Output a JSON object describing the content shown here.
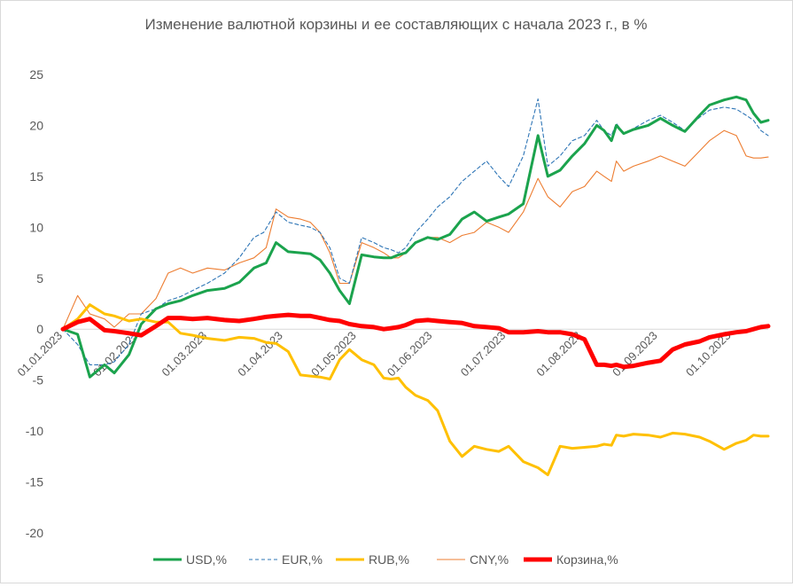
{
  "chart_data": {
    "type": "line",
    "title": "Изменение валютной корзины и ее составляющих с начала 2023 г., в %",
    "xlabel": "",
    "ylabel": "",
    "ylim": [
      -20,
      25
    ],
    "yticks": [
      "25",
      "20",
      "15",
      "10",
      "5",
      "0",
      "-5",
      "-10",
      "-15",
      "-20"
    ],
    "xticks": [
      "01.01.2023",
      "01.02.2023",
      "01.03.2023",
      "01.04.2023",
      "01.05.2023",
      "01.06.2023",
      "01.07.2023",
      "01.08.2023",
      "01.09.2023",
      "01.10.2023"
    ],
    "legend_position": "bottom",
    "grid": false,
    "series": [
      {
        "name": "USD,%",
        "color": "#1ba34d",
        "style": "solid-thick",
        "x": [
          "2023-01-01",
          "2023-01-07",
          "2023-01-12",
          "2023-01-18",
          "2023-01-22",
          "2023-01-28",
          "2023-02-02",
          "2023-02-08",
          "2023-02-13",
          "2023-02-18",
          "2023-02-23",
          "2023-03-01",
          "2023-03-08",
          "2023-03-14",
          "2023-03-20",
          "2023-03-25",
          "2023-03-29",
          "2023-04-03",
          "2023-04-08",
          "2023-04-12",
          "2023-04-16",
          "2023-04-20",
          "2023-04-24",
          "2023-04-28",
          "2023-05-03",
          "2023-05-08",
          "2023-05-12",
          "2023-05-15",
          "2023-05-18",
          "2023-05-21",
          "2023-05-25",
          "2023-05-30",
          "2023-06-03",
          "2023-06-08",
          "2023-06-13",
          "2023-06-18",
          "2023-06-23",
          "2023-06-28",
          "2023-07-02",
          "2023-07-08",
          "2023-07-14",
          "2023-07-18",
          "2023-07-23",
          "2023-07-28",
          "2023-08-02",
          "2023-08-07",
          "2023-08-10",
          "2023-08-13",
          "2023-08-15",
          "2023-08-18",
          "2023-08-22",
          "2023-08-28",
          "2023-09-02",
          "2023-09-07",
          "2023-09-12",
          "2023-09-18",
          "2023-09-22",
          "2023-09-28",
          "2023-10-03",
          "2023-10-07",
          "2023-10-10",
          "2023-10-13",
          "2023-10-16"
        ],
        "y": [
          0,
          -0.5,
          -4.7,
          -3.5,
          -4.3,
          -2.5,
          0.5,
          2,
          2.5,
          2.8,
          3.3,
          3.8,
          4,
          4.6,
          6,
          6.5,
          8.5,
          7.6,
          7.5,
          7.4,
          6.8,
          5.5,
          3.8,
          2.5,
          7.3,
          7.1,
          7,
          7,
          7.3,
          7.5,
          8.5,
          9,
          8.8,
          9.3,
          10.8,
          11.5,
          10.6,
          11,
          11.3,
          12.3,
          19,
          15,
          15.6,
          17,
          18.2,
          20,
          19.5,
          18.5,
          20,
          19.2,
          19.6,
          20,
          20.7,
          20,
          19.4,
          21,
          22,
          22.5,
          22.8,
          22.5,
          21.2,
          20.3,
          20.5
        ]
      },
      {
        "name": "EUR,%",
        "color": "#2e75b6",
        "style": "dashed-thin",
        "x": [
          "2023-01-01",
          "2023-01-07",
          "2023-01-12",
          "2023-01-18",
          "2023-01-22",
          "2023-01-28",
          "2023-02-02",
          "2023-02-08",
          "2023-02-13",
          "2023-02-18",
          "2023-02-23",
          "2023-03-01",
          "2023-03-08",
          "2023-03-14",
          "2023-03-20",
          "2023-03-24",
          "2023-03-29",
          "2023-04-03",
          "2023-04-08",
          "2023-04-12",
          "2023-04-16",
          "2023-04-20",
          "2023-04-24",
          "2023-04-28",
          "2023-05-03",
          "2023-05-08",
          "2023-05-12",
          "2023-05-15",
          "2023-05-18",
          "2023-05-21",
          "2023-05-25",
          "2023-05-30",
          "2023-06-03",
          "2023-06-08",
          "2023-06-13",
          "2023-06-18",
          "2023-06-23",
          "2023-06-28",
          "2023-07-02",
          "2023-07-08",
          "2023-07-14",
          "2023-07-18",
          "2023-07-23",
          "2023-07-28",
          "2023-08-02",
          "2023-08-07",
          "2023-08-10",
          "2023-08-13",
          "2023-08-15",
          "2023-08-18",
          "2023-08-22",
          "2023-08-28",
          "2023-09-02",
          "2023-09-07",
          "2023-09-12",
          "2023-09-18",
          "2023-09-22",
          "2023-09-28",
          "2023-10-03",
          "2023-10-07",
          "2023-10-10",
          "2023-10-13",
          "2023-10-16"
        ],
        "y": [
          0,
          -1.5,
          -3.5,
          -3.5,
          -3.2,
          -1.5,
          1.5,
          2,
          2.8,
          3.2,
          3.8,
          4.5,
          5.5,
          7,
          9,
          9.5,
          11.5,
          10.5,
          10.2,
          10,
          9.5,
          8,
          5,
          4.5,
          9,
          8.5,
          8,
          7.8,
          7.5,
          8,
          9.5,
          10.8,
          12,
          13,
          14.5,
          15.5,
          16.5,
          15,
          14,
          17,
          22.6,
          16,
          17,
          18.5,
          19,
          20.5,
          19.5,
          19,
          20.2,
          19.2,
          19.7,
          20.5,
          21,
          20.3,
          19.5,
          20.8,
          21.5,
          21.8,
          21.6,
          21,
          20.5,
          19.5,
          19
        ]
      },
      {
        "name": "RUB,%",
        "color": "#ffc000",
        "style": "solid-thick",
        "x": [
          "2023-01-01",
          "2023-01-07",
          "2023-01-12",
          "2023-01-18",
          "2023-01-22",
          "2023-01-28",
          "2023-02-02",
          "2023-02-08",
          "2023-02-13",
          "2023-02-18",
          "2023-02-23",
          "2023-03-01",
          "2023-03-08",
          "2023-03-14",
          "2023-03-20",
          "2023-03-25",
          "2023-03-29",
          "2023-04-03",
          "2023-04-08",
          "2023-04-12",
          "2023-04-16",
          "2023-04-20",
          "2023-04-24",
          "2023-04-28",
          "2023-05-03",
          "2023-05-08",
          "2023-05-12",
          "2023-05-15",
          "2023-05-18",
          "2023-05-21",
          "2023-05-25",
          "2023-05-30",
          "2023-06-03",
          "2023-06-08",
          "2023-06-13",
          "2023-06-18",
          "2023-06-23",
          "2023-06-28",
          "2023-07-02",
          "2023-07-08",
          "2023-07-14",
          "2023-07-18",
          "2023-07-23",
          "2023-07-28",
          "2023-08-02",
          "2023-08-07",
          "2023-08-10",
          "2023-08-13",
          "2023-08-15",
          "2023-08-18",
          "2023-08-22",
          "2023-08-28",
          "2023-09-02",
          "2023-09-07",
          "2023-09-12",
          "2023-09-18",
          "2023-09-22",
          "2023-09-28",
          "2023-10-03",
          "2023-10-07",
          "2023-10-10",
          "2023-10-13",
          "2023-10-16"
        ],
        "y": [
          0,
          1,
          2.4,
          1.5,
          1.3,
          0.8,
          1,
          0.7,
          0.7,
          -0.4,
          -0.6,
          -0.9,
          -1.1,
          -0.8,
          -0.9,
          -1.3,
          -1.4,
          -2.2,
          -4.5,
          -4.6,
          -4.7,
          -4.9,
          -3,
          -2,
          -3,
          -3.5,
          -4.8,
          -4.9,
          -4.8,
          -5.7,
          -6.5,
          -7,
          -8,
          -11,
          -12.5,
          -11.5,
          -11.8,
          -12,
          -11.5,
          -13,
          -13.6,
          -14.3,
          -11.5,
          -11.7,
          -11.6,
          -11.5,
          -11.3,
          -11.4,
          -10.4,
          -10.5,
          -10.3,
          -10.4,
          -10.6,
          -10.2,
          -10.3,
          -10.6,
          -11,
          -11.8,
          -11.2,
          -10.9,
          -10.4,
          -10.5,
          -10.5
        ]
      },
      {
        "name": "CNY,%",
        "color": "#ed7d31",
        "style": "solid-thin",
        "x": [
          "2023-01-01",
          "2023-01-07",
          "2023-01-12",
          "2023-01-18",
          "2023-01-22",
          "2023-01-28",
          "2023-02-02",
          "2023-02-08",
          "2023-02-13",
          "2023-02-18",
          "2023-02-23",
          "2023-03-01",
          "2023-03-08",
          "2023-03-14",
          "2023-03-20",
          "2023-03-25",
          "2023-03-29",
          "2023-04-03",
          "2023-04-08",
          "2023-04-12",
          "2023-04-16",
          "2023-04-20",
          "2023-04-24",
          "2023-04-28",
          "2023-05-03",
          "2023-05-08",
          "2023-05-12",
          "2023-05-15",
          "2023-05-18",
          "2023-05-21",
          "2023-05-25",
          "2023-05-30",
          "2023-06-03",
          "2023-06-08",
          "2023-06-13",
          "2023-06-18",
          "2023-06-23",
          "2023-06-28",
          "2023-07-02",
          "2023-07-08",
          "2023-07-14",
          "2023-07-18",
          "2023-07-23",
          "2023-07-28",
          "2023-08-02",
          "2023-08-07",
          "2023-08-10",
          "2023-08-13",
          "2023-08-15",
          "2023-08-18",
          "2023-08-22",
          "2023-08-28",
          "2023-09-02",
          "2023-09-07",
          "2023-09-12",
          "2023-09-18",
          "2023-09-22",
          "2023-09-28",
          "2023-10-03",
          "2023-10-07",
          "2023-10-10",
          "2023-10-13",
          "2023-10-16"
        ],
        "y": [
          0,
          3.3,
          1.5,
          1,
          0.2,
          1.5,
          1.5,
          3,
          5.5,
          6,
          5.5,
          6,
          5.8,
          6.5,
          7,
          8,
          11.8,
          11,
          10.8,
          10.5,
          9.5,
          7.5,
          4.5,
          4.5,
          8.5,
          8,
          7.5,
          7,
          7,
          7.5,
          8.5,
          9,
          9,
          8.5,
          9.2,
          9.5,
          10.5,
          10,
          9.5,
          11.5,
          14.8,
          13,
          12,
          13.5,
          14,
          15.5,
          15,
          14.5,
          16.5,
          15.5,
          16,
          16.5,
          17,
          16.5,
          16,
          17.5,
          18.5,
          19.5,
          19,
          17,
          16.8,
          16.8,
          16.9
        ]
      },
      {
        "name": "Корзина,%",
        "color": "#ff0000",
        "style": "solid-heavy",
        "x": [
          "2023-01-01",
          "2023-01-07",
          "2023-01-12",
          "2023-01-18",
          "2023-01-22",
          "2023-01-28",
          "2023-02-02",
          "2023-02-08",
          "2023-02-13",
          "2023-02-18",
          "2023-02-23",
          "2023-03-01",
          "2023-03-08",
          "2023-03-14",
          "2023-03-20",
          "2023-03-25",
          "2023-03-29",
          "2023-04-03",
          "2023-04-08",
          "2023-04-12",
          "2023-04-16",
          "2023-04-20",
          "2023-04-24",
          "2023-04-28",
          "2023-05-03",
          "2023-05-08",
          "2023-05-12",
          "2023-05-15",
          "2023-05-18",
          "2023-05-21",
          "2023-05-25",
          "2023-05-30",
          "2023-06-03",
          "2023-06-08",
          "2023-06-13",
          "2023-06-18",
          "2023-06-23",
          "2023-06-28",
          "2023-07-02",
          "2023-07-08",
          "2023-07-14",
          "2023-07-18",
          "2023-07-23",
          "2023-07-28",
          "2023-08-02",
          "2023-08-07",
          "2023-08-10",
          "2023-08-13",
          "2023-08-15",
          "2023-08-18",
          "2023-08-22",
          "2023-08-28",
          "2023-09-02",
          "2023-09-07",
          "2023-09-12",
          "2023-09-18",
          "2023-09-22",
          "2023-09-28",
          "2023-10-03",
          "2023-10-07",
          "2023-10-10",
          "2023-10-13",
          "2023-10-16"
        ],
        "y": [
          0,
          0.7,
          1,
          -0.1,
          -0.2,
          -0.4,
          -0.6,
          0.3,
          1.1,
          1.1,
          1,
          1.1,
          0.9,
          0.8,
          1,
          1.2,
          1.3,
          1.4,
          1.3,
          1.3,
          1.1,
          0.9,
          0.8,
          0.5,
          0.3,
          0.2,
          0,
          0.1,
          0.2,
          0.4,
          0.8,
          0.9,
          0.8,
          0.7,
          0.6,
          0.3,
          0.2,
          0.1,
          -0.3,
          -0.3,
          -0.2,
          -0.3,
          -0.3,
          -0.5,
          -1,
          -3.5,
          -3.5,
          -3.6,
          -3.5,
          -3.7,
          -3.6,
          -3.3,
          -3.1,
          -2,
          -1.5,
          -1.2,
          -0.8,
          -0.5,
          -0.3,
          -0.2,
          0,
          0.2,
          0.3
        ]
      }
    ]
  }
}
